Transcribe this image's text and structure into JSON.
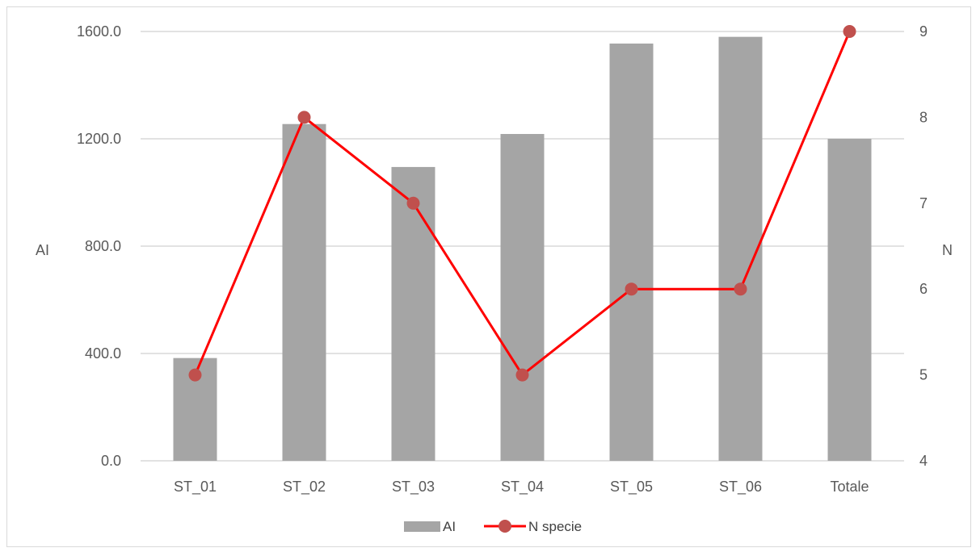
{
  "chart_data": {
    "type": "bar",
    "categories": [
      "ST_01",
      "ST_02",
      "ST_03",
      "ST_04",
      "ST_05",
      "ST_06",
      "Totale"
    ],
    "series": [
      {
        "name": "AI",
        "type": "bar",
        "axis": "left",
        "values": [
          383,
          1255,
          1095,
          1218,
          1555,
          1580,
          1200
        ]
      },
      {
        "name": "N specie",
        "type": "line",
        "axis": "right",
        "values": [
          5,
          8,
          7,
          5,
          6,
          6,
          9
        ]
      }
    ],
    "ylabel": "AI",
    "y2label": "N",
    "ylim": [
      0,
      1600
    ],
    "y2lim": [
      4,
      9
    ],
    "yticks": [
      "0.0",
      "400.0",
      "800.0",
      "1200.0",
      "1600.0"
    ],
    "y2ticks": [
      "4",
      "5",
      "6",
      "7",
      "8",
      "9"
    ],
    "grid": true,
    "legend_position": "bottom",
    "colors": {
      "bar": "#a5a5a5",
      "line": "#ff0000",
      "marker": "#c0504d",
      "grid": "#d9d9d9",
      "text": "#595959"
    }
  }
}
